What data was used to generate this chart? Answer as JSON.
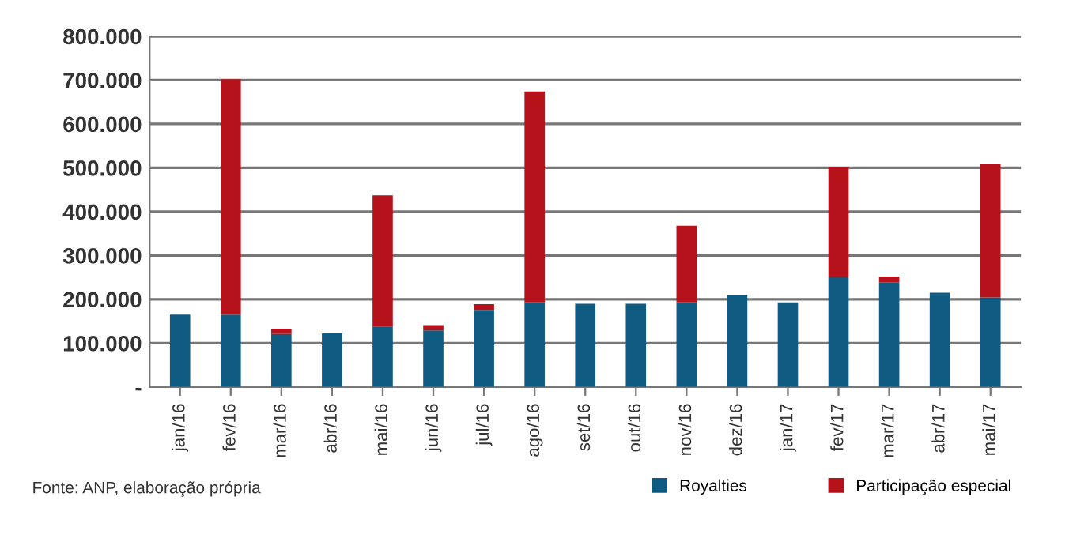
{
  "chart_data": {
    "type": "bar",
    "stacked": true,
    "categories": [
      "jan/16",
      "fev/16",
      "mar/16",
      "abr/16",
      "mai/16",
      "jun/16",
      "jul/16",
      "ago/16",
      "set/16",
      "out/16",
      "nov/16",
      "dez/16",
      "jan/17",
      "fev/17",
      "mar/17",
      "abr/17",
      "mai/17"
    ],
    "series": [
      {
        "name": "Royalties",
        "color": "#0f5b82",
        "values": [
          165000,
          165000,
          121000,
          122000,
          137000,
          129000,
          176000,
          193000,
          190000,
          190000,
          193000,
          210000,
          193000,
          251000,
          239000,
          215000,
          204000
        ]
      },
      {
        "name": "Participação especial",
        "color": "#b5121b",
        "values": [
          0,
          537000,
          12000,
          0,
          300000,
          12000,
          13000,
          481000,
          0,
          0,
          175000,
          0,
          0,
          250000,
          13000,
          0,
          304000
        ]
      }
    ],
    "ylim": [
      0,
      800000
    ],
    "yticks": [
      {
        "value": 0,
        "label": "-"
      },
      {
        "value": 100000,
        "label": "100.000"
      },
      {
        "value": 200000,
        "label": "200.000"
      },
      {
        "value": 300000,
        "label": "300.000"
      },
      {
        "value": 400000,
        "label": "400.000"
      },
      {
        "value": 500000,
        "label": "500.000"
      },
      {
        "value": 600000,
        "label": "600.000"
      },
      {
        "value": 700000,
        "label": "700.000"
      },
      {
        "value": 800000,
        "label": "800.000"
      }
    ],
    "grid": "y",
    "legend": "bottom right",
    "annotations": [
      "Fonte: ANP, elaboração própria"
    ]
  }
}
